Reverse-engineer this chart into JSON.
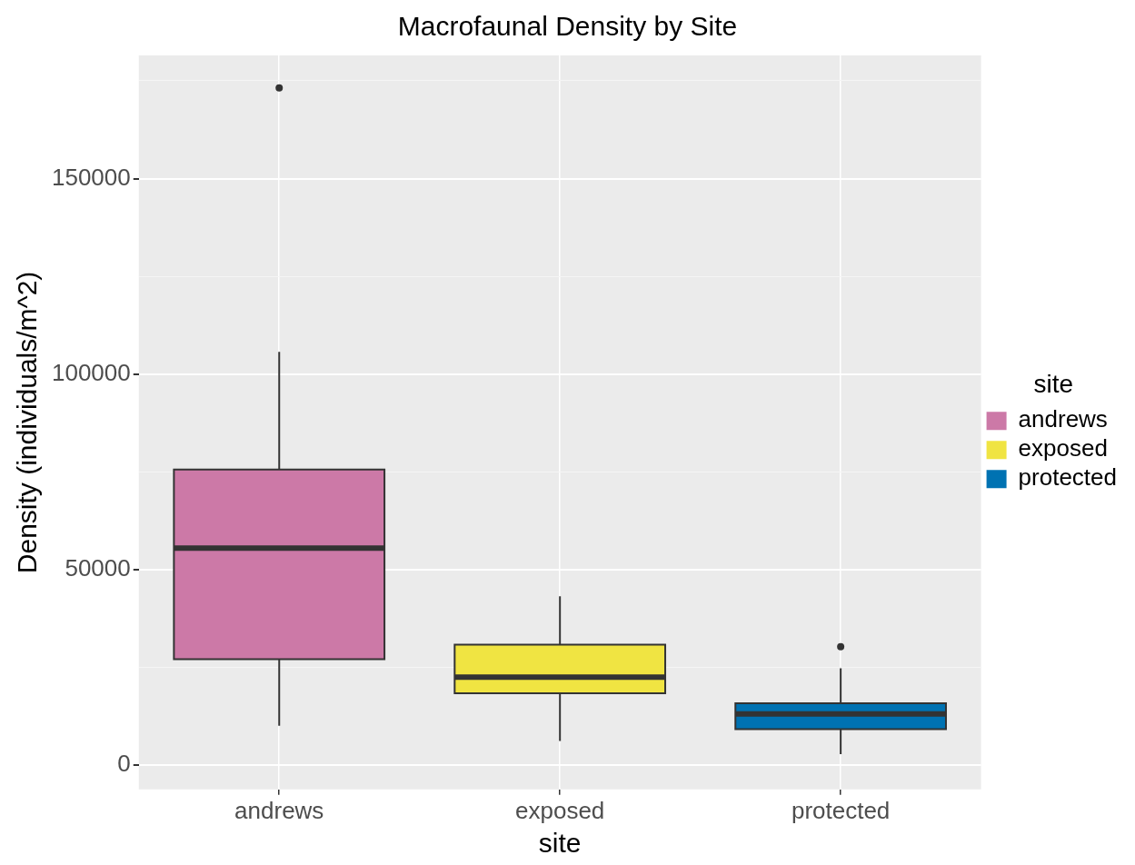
{
  "chart_data": {
    "type": "box",
    "title": "Macrofaunal Density by Site",
    "xlabel": "site",
    "ylabel": "Density (individuals/m^2)",
    "legend_title": "site",
    "categories": [
      "andrews",
      "exposed",
      "protected"
    ],
    "series": [
      {
        "name": "andrews",
        "color": "#cc79a7",
        "boxes": [
          {
            "low": 10100,
            "q1": 27100,
            "median": 55500,
            "q3": 75600,
            "high": 105700,
            "outliers": [
              173200
            ]
          },
          null,
          null
        ]
      },
      {
        "name": "exposed",
        "color": "#f0e442",
        "boxes": [
          null,
          {
            "low": 6200,
            "q1": 18400,
            "median": 22500,
            "q3": 30800,
            "high": 43200
          },
          null
        ]
      },
      {
        "name": "protected",
        "color": "#0072b2",
        "boxes": [
          null,
          null,
          {
            "low": 2800,
            "q1": 9200,
            "median": 13100,
            "q3": 15800,
            "high": 24800,
            "outliers": [
              30300
            ]
          }
        ]
      }
    ],
    "ylim": [
      -6200,
      181500
    ],
    "yticks": [
      0,
      {
        "value": 25000,
        "label": null
      },
      50000,
      {
        "value": 75000,
        "label": null
      },
      100000,
      {
        "value": 125000,
        "label": null
      },
      150000,
      {
        "value": 175000,
        "label": null
      }
    ],
    "grid": true,
    "legend": "right"
  }
}
